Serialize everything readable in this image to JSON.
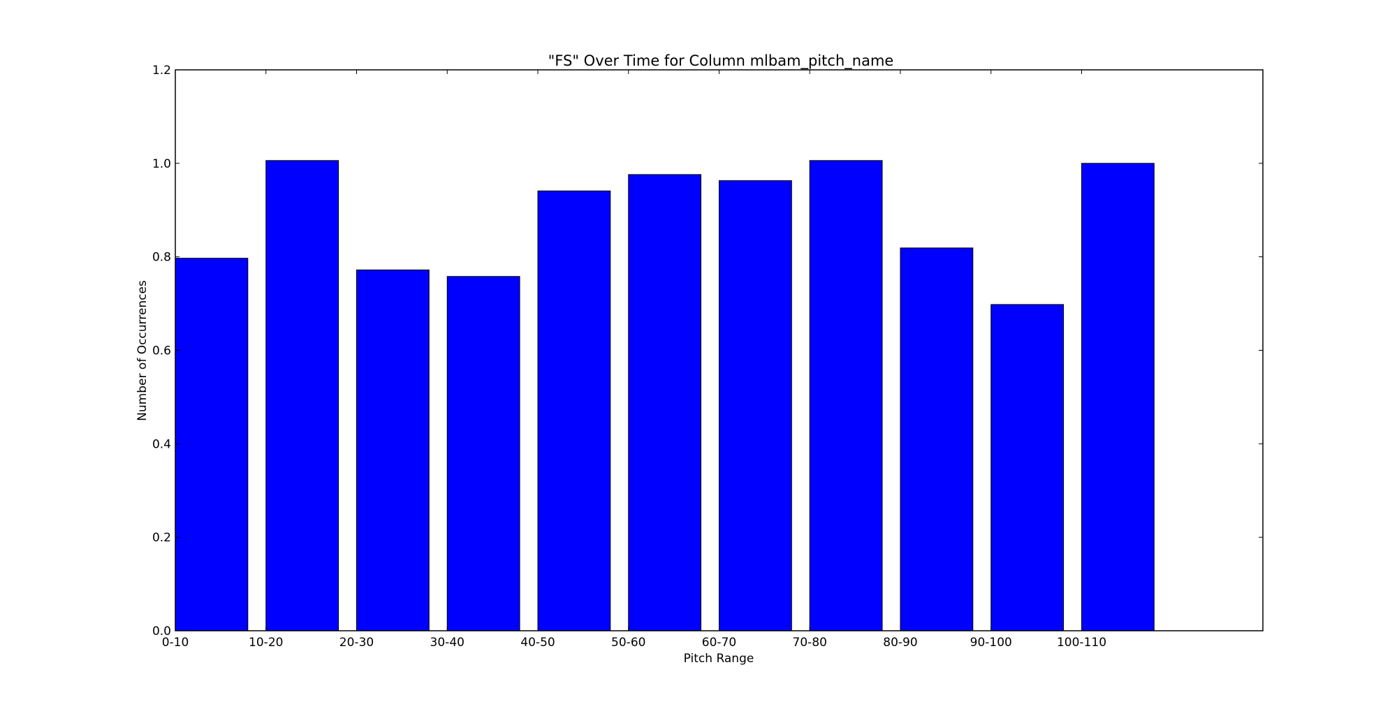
{
  "chart_data": {
    "type": "bar",
    "title": "\"FS\" Over Time for Column mlbam_pitch_name",
    "xlabel": "Pitch Range",
    "ylabel": "Number of Occurrences",
    "categories": [
      "0-10",
      "10-20",
      "20-30",
      "30-40",
      "40-50",
      "50-60",
      "60-70",
      "70-80",
      "80-90",
      "90-100",
      "100-110"
    ],
    "values": [
      0.797,
      1.006,
      0.772,
      0.758,
      0.941,
      0.976,
      0.963,
      1.006,
      0.819,
      0.698,
      1.0
    ],
    "ylim": [
      0,
      1.2
    ],
    "yticks": [
      "0.0",
      "0.2",
      "0.4",
      "0.6",
      "0.8",
      "1.0",
      "1.2"
    ],
    "grid": false,
    "bar_color": "#0000ff",
    "edge_color": "#000000"
  }
}
